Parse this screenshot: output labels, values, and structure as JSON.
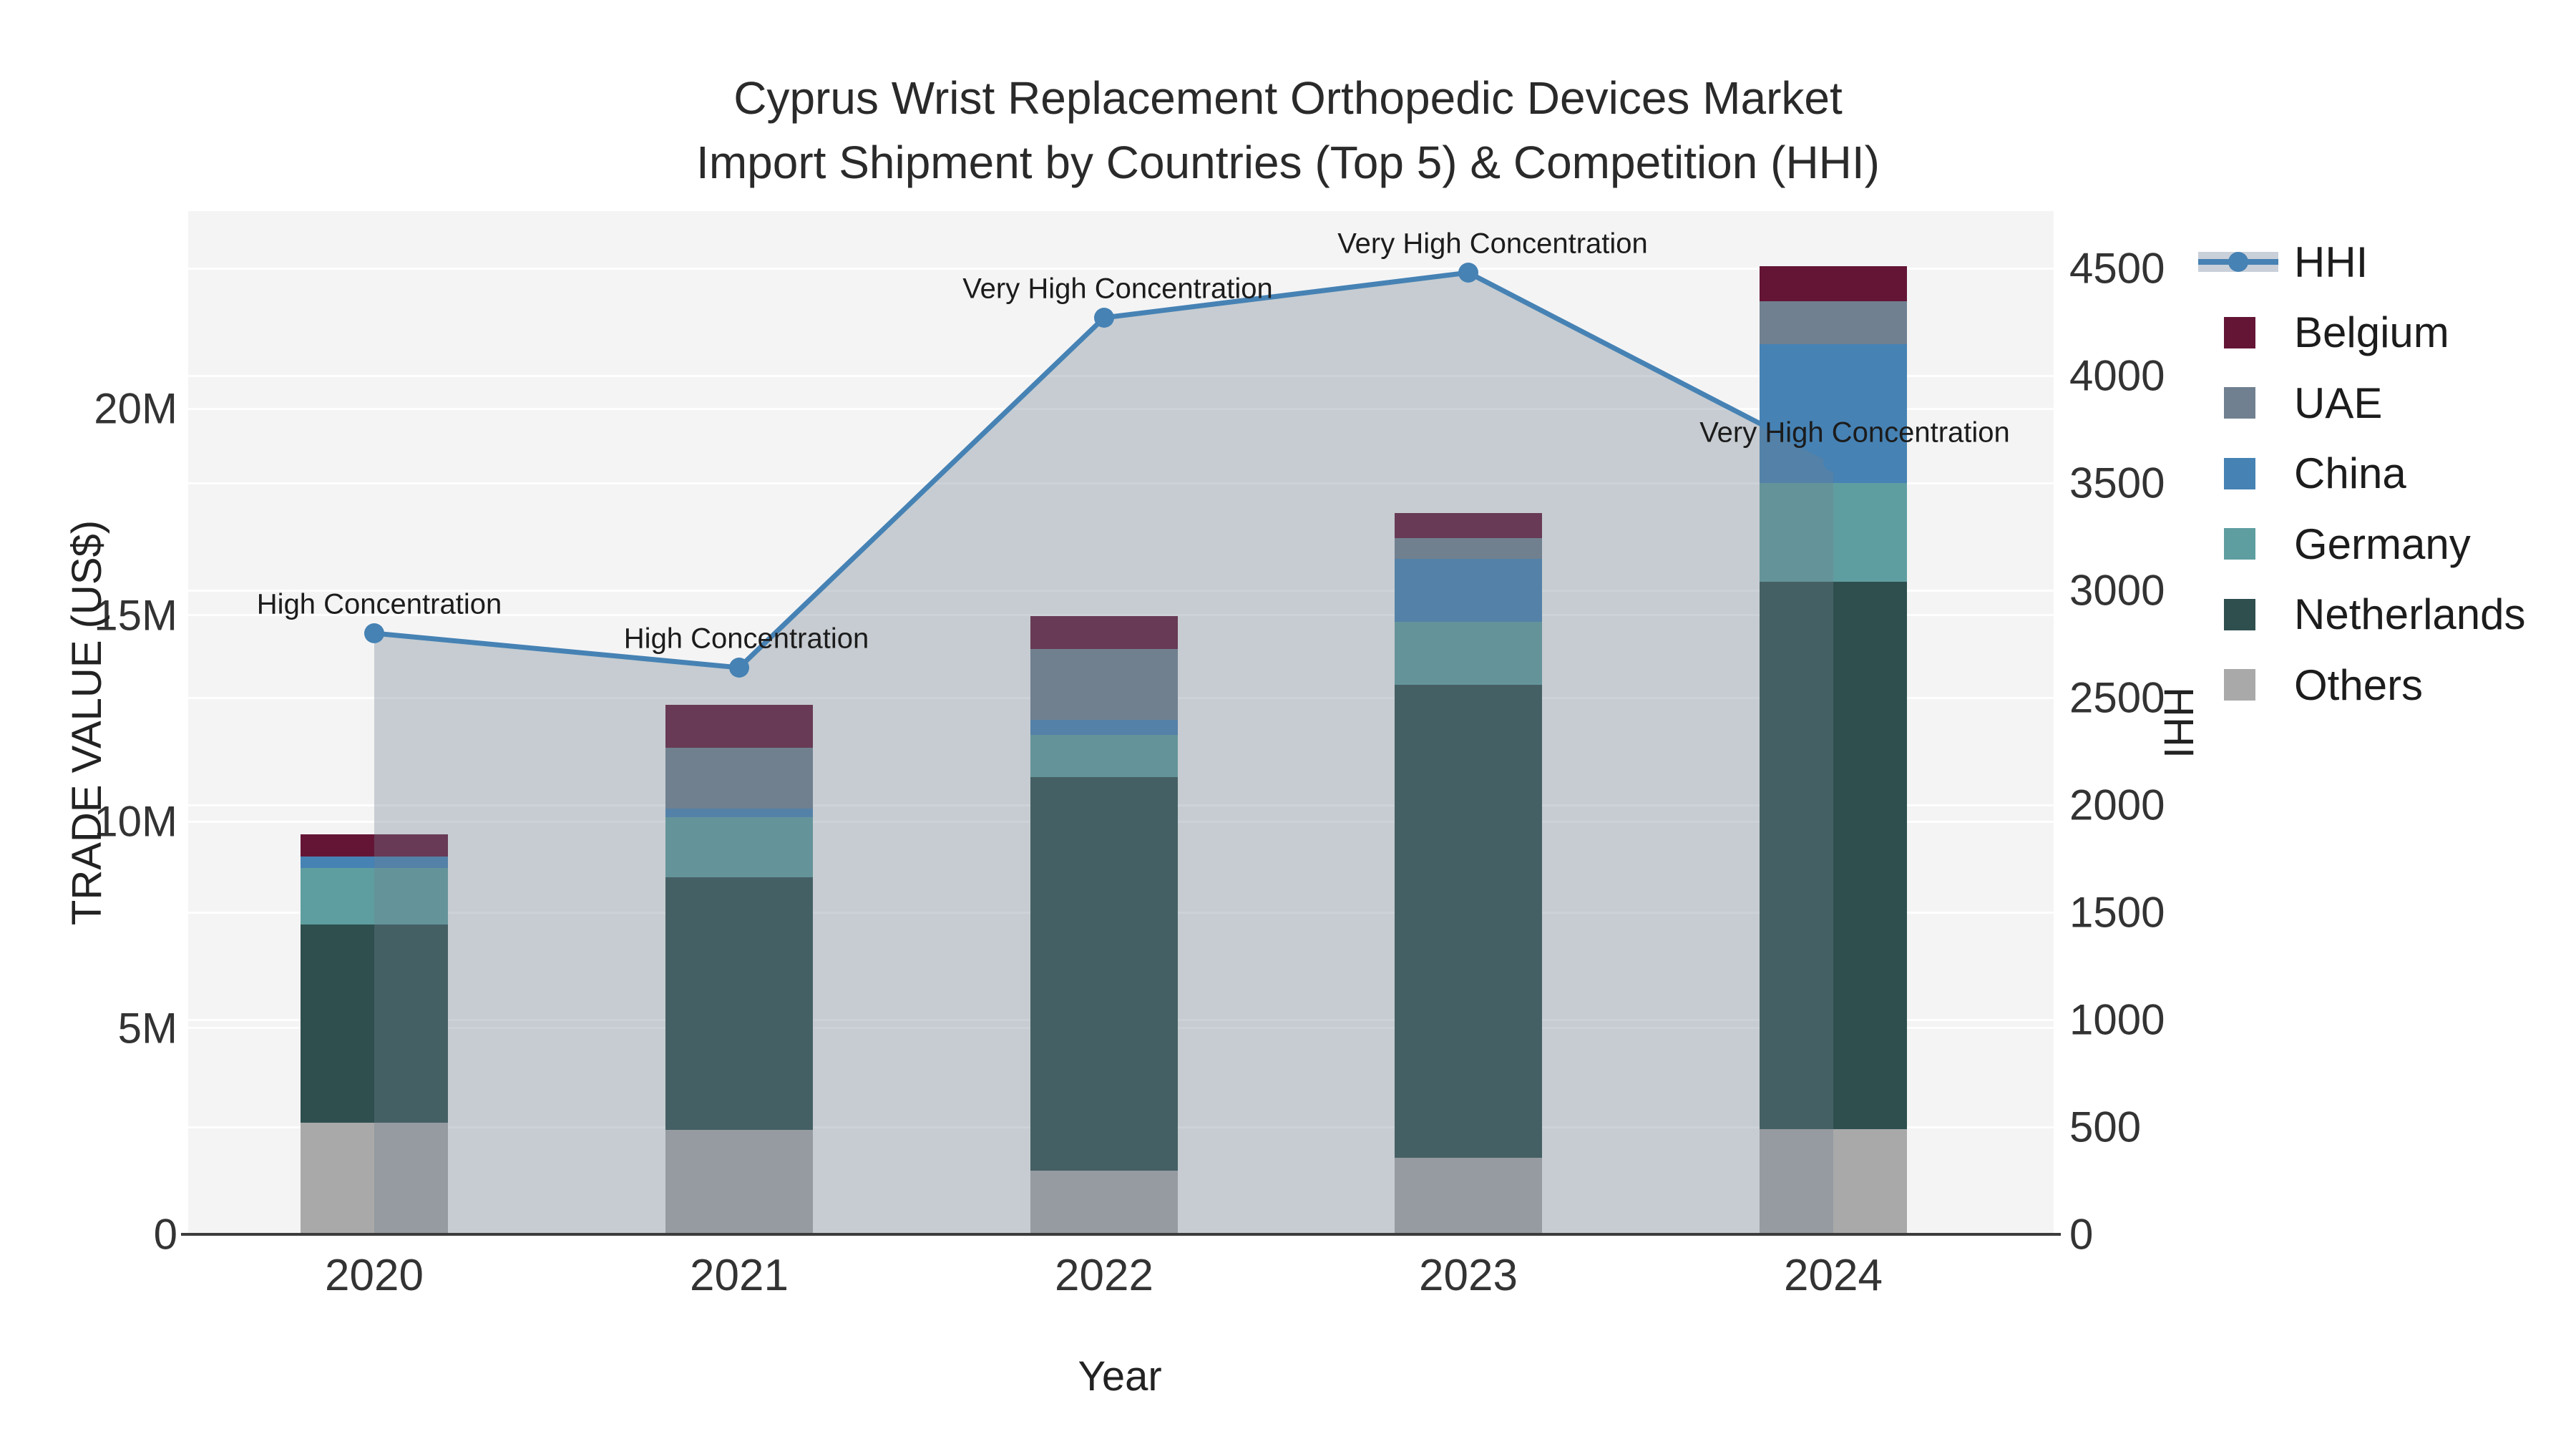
{
  "title": {
    "line1": "Cyprus Wrist Replacement Orthopedic Devices Market",
    "line2": "Import Shipment by Countries (Top 5) & Competition (HHI)"
  },
  "axes": {
    "x_label": "Year",
    "y_left_label": "TRADE VALUE (US$)",
    "y_right_label": "HHI",
    "x_ticks": [
      "2020",
      "2021",
      "2022",
      "2023",
      "2024"
    ],
    "y_left_ticks": [
      {
        "label": "0",
        "value": 0
      },
      {
        "label": "5M",
        "value": 5
      },
      {
        "label": "10M",
        "value": 10
      },
      {
        "label": "15M",
        "value": 15
      },
      {
        "label": "20M",
        "value": 20
      }
    ],
    "y_right_ticks": [
      {
        "label": "0",
        "value": 0
      },
      {
        "label": "500",
        "value": 500
      },
      {
        "label": "1000",
        "value": 1000
      },
      {
        "label": "1500",
        "value": 1500
      },
      {
        "label": "2000",
        "value": 2000
      },
      {
        "label": "2500",
        "value": 2500
      },
      {
        "label": "3000",
        "value": 3000
      },
      {
        "label": "3500",
        "value": 3500
      },
      {
        "label": "4000",
        "value": 4000
      },
      {
        "label": "4500",
        "value": 4500
      }
    ]
  },
  "colors": {
    "figure_bg": "#ffffff",
    "plot_bg": "#f4f4f5",
    "axis_line": "#3c3c3c",
    "hhi_line": "#4682b4",
    "hhi_fill": "rgba(112,128,144,0.35)",
    "belgium": "#641536",
    "uae": "#708090",
    "china": "#4682b4",
    "germany": "#5f9ea0",
    "netherlands": "#2f4f4f",
    "others": "#a9a9a9"
  },
  "legend": [
    {
      "label": "HHI",
      "type": "line",
      "color": "#4682b4"
    },
    {
      "label": "Belgium",
      "type": "square",
      "color": "#641536"
    },
    {
      "label": "UAE",
      "type": "square",
      "color": "#708090"
    },
    {
      "label": "China",
      "type": "square",
      "color": "#4682b4"
    },
    {
      "label": "Germany",
      "type": "square",
      "color": "#5f9ea0"
    },
    {
      "label": "Netherlands",
      "type": "square",
      "color": "#2f4f4f"
    },
    {
      "label": "Others",
      "type": "square",
      "color": "#a9a9a9"
    }
  ],
  "chart_data": {
    "type": "bar",
    "subtype": "stacked bars (left axis, trade value in millions US$) + line with markers and area fill (right axis, HHI)",
    "categories": [
      "2020",
      "2021",
      "2022",
      "2023",
      "2024"
    ],
    "unit": "million US$",
    "series": [
      {
        "name": "Others",
        "color": "#a9a9a9",
        "values": [
          2.7,
          2.53,
          1.54,
          1.85,
          2.54
        ]
      },
      {
        "name": "Netherlands",
        "color": "#2f4f4f",
        "values": [
          4.8,
          6.11,
          9.53,
          11.46,
          13.26
        ]
      },
      {
        "name": "Germany",
        "color": "#5f9ea0",
        "values": [
          1.38,
          1.46,
          1.03,
          1.52,
          2.4
        ]
      },
      {
        "name": "China",
        "color": "#4682b4",
        "values": [
          0.27,
          0.22,
          0.36,
          1.53,
          3.36
        ]
      },
      {
        "name": "UAE",
        "color": "#708090",
        "values": [
          0.0,
          1.46,
          1.71,
          0.5,
          1.04
        ]
      },
      {
        "name": "Belgium",
        "color": "#641536",
        "values": [
          0.54,
          1.05,
          0.8,
          0.61,
          0.85
        ]
      }
    ],
    "stack_totals_M": [
      9.69,
      12.83,
      14.97,
      17.47,
      23.45
    ],
    "line_series": {
      "name": "HHI",
      "color": "#4682b4",
      "fill_color": "rgba(112,128,144,0.35)",
      "values": [
        2800,
        2640,
        4270,
        4480,
        3600
      ],
      "annotations": [
        "High Concentration",
        "High Concentration",
        "Very High Concentration",
        "Very High Concentration",
        "Very High Concentration"
      ]
    },
    "title": "Cyprus Wrist Replacement Orthopedic Devices Market Import Shipment by Countries (Top 5) & Competition (HHI)",
    "xlabel": "Year",
    "ylabel_left": "TRADE VALUE (US$)",
    "ylabel_right": "HHI",
    "ylim_left_M": [
      0,
      24.8
    ],
    "ylim_right": [
      0,
      4766
    ],
    "grid": true,
    "legend_position": "right"
  }
}
